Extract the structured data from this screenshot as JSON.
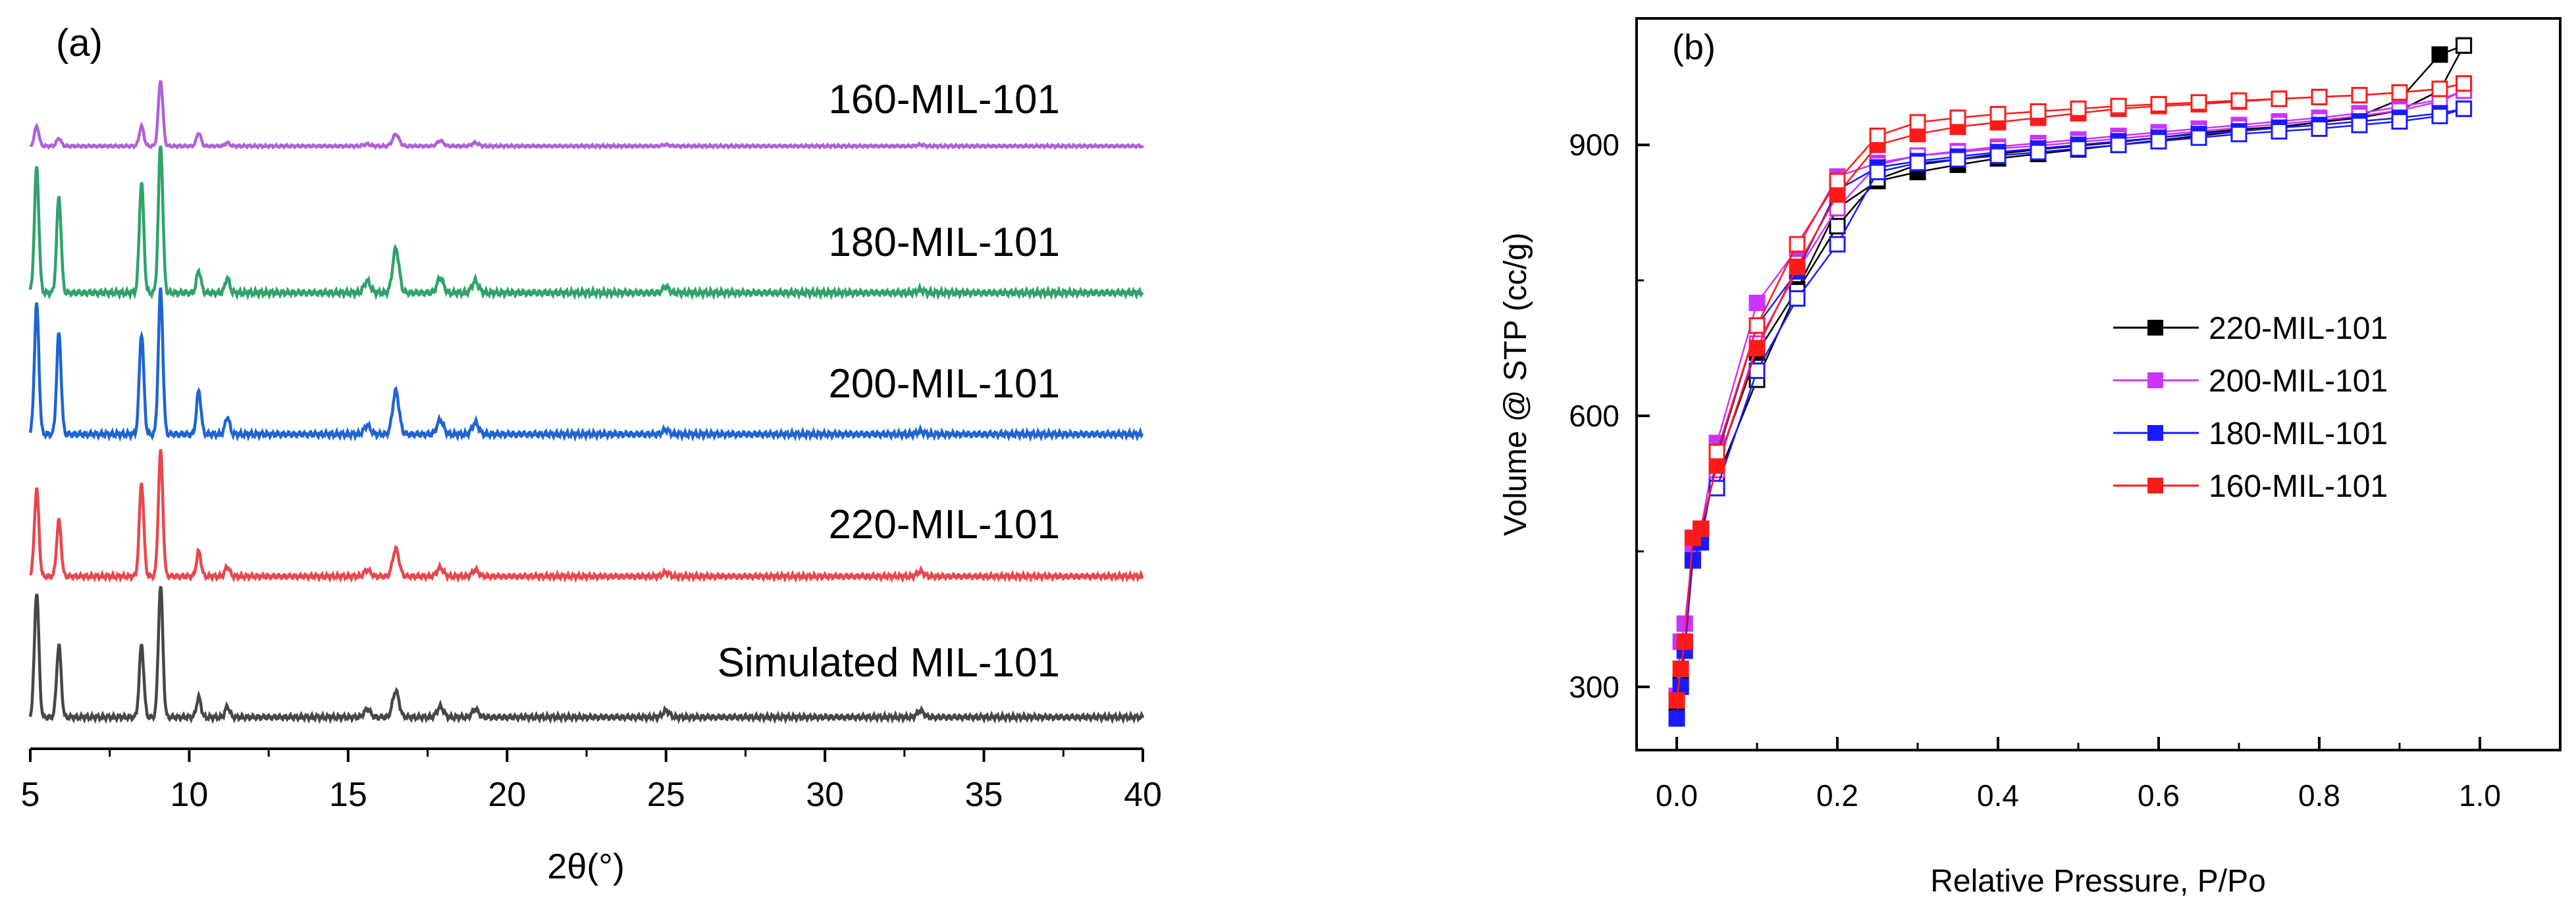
{
  "chart_data": [
    {
      "panel_label": "(a)",
      "type": "line",
      "xlabel": "2θ(°)",
      "ylabel": "",
      "xlim": [
        5,
        40
      ],
      "x_ticks": [
        5,
        10,
        15,
        20,
        25,
        30,
        35,
        40
      ],
      "grid": false,
      "peak_positions_2theta": [
        5.2,
        5.9,
        8.5,
        9.1,
        10.3,
        11.2,
        15.6,
        16.5,
        17.9,
        19.0,
        25.0,
        33.0
      ],
      "series": [
        {
          "name": "Simulated MIL-101",
          "color": "#474747",
          "peak_heights": [
            0.95,
            0.55,
            0.55,
            1.0,
            0.15,
            0.08,
            0.06,
            0.2,
            0.08,
            0.06,
            0.05,
            0.05
          ]
        },
        {
          "name": "220-MIL-101",
          "color": "#e8474c",
          "peak_heights": [
            0.7,
            0.45,
            0.75,
            1.0,
            0.2,
            0.08,
            0.05,
            0.22,
            0.07,
            0.05,
            0.03,
            0.04
          ]
        },
        {
          "name": "200-MIL-101",
          "color": "#1f64d2",
          "peak_heights": [
            0.9,
            0.7,
            0.7,
            1.0,
            0.3,
            0.12,
            0.06,
            0.3,
            0.1,
            0.08,
            0.03,
            0.02
          ]
        },
        {
          "name": "180-MIL-101",
          "color": "#2ea36a",
          "peak_heights": [
            0.85,
            0.65,
            0.75,
            1.0,
            0.15,
            0.1,
            0.08,
            0.3,
            0.1,
            0.08,
            0.04,
            0.02
          ]
        },
        {
          "name": "160-MIL-101",
          "color": "#b061d8",
          "peak_heights": [
            0.3,
            0.12,
            0.3,
            1.0,
            0.2,
            0.05,
            0.03,
            0.18,
            0.08,
            0.05,
            0.02,
            0.02
          ]
        }
      ]
    },
    {
      "panel_label": "(b)",
      "type": "scatter",
      "xlabel": "Relative Pressure, P/Po",
      "ylabel": "Volume @ STP (cc/g)",
      "xlim": [
        -0.05,
        1.1
      ],
      "ylim": [
        230,
        1040
      ],
      "x_ticks": [
        "0.0",
        "0.2",
        "0.4",
        "0.6",
        "0.8",
        "1.0"
      ],
      "y_ticks": [
        "300",
        "600",
        "900"
      ],
      "grid": false,
      "legend_position": "center-right",
      "series": [
        {
          "name": "220-MIL-101",
          "color": "#000000",
          "adsorption": {
            "x": [
              0.0,
              0.005,
              0.01,
              0.02,
              0.03,
              0.05,
              0.1,
              0.15,
              0.2,
              0.25,
              0.3,
              0.35,
              0.4,
              0.45,
              0.5,
              0.55,
              0.6,
              0.65,
              0.7,
              0.75,
              0.8,
              0.85,
              0.9,
              0.95,
              0.98
            ],
            "y": [
              275,
              305,
              350,
              440,
              470,
              545,
              670,
              740,
              830,
              860,
              870,
              878,
              885,
              890,
              895,
              900,
              905,
              910,
              915,
              920,
              925,
              932,
              950,
              1000,
              1010
            ]
          },
          "desorption": {
            "x": [
              0.98,
              0.95,
              0.9,
              0.85,
              0.8,
              0.75,
              0.7,
              0.65,
              0.6,
              0.55,
              0.5,
              0.45,
              0.4,
              0.35,
              0.3,
              0.25,
              0.2,
              0.15,
              0.1,
              0.05
            ],
            "y": [
              1010,
              960,
              938,
              930,
              925,
              920,
              917,
              913,
              908,
              903,
              899,
              895,
              890,
              884,
              878,
              862,
              810,
              738,
              640,
              530
            ]
          }
        },
        {
          "name": "200-MIL-101",
          "color": "#cc33ff",
          "adsorption": {
            "x": [
              0.0,
              0.005,
              0.01,
              0.02,
              0.03,
              0.05,
              0.1,
              0.15,
              0.2,
              0.25,
              0.3,
              0.35,
              0.4,
              0.45,
              0.5,
              0.55,
              0.6,
              0.65,
              0.7,
              0.75,
              0.8,
              0.85,
              0.9,
              0.95,
              0.98
            ],
            "y": [
              290,
              350,
              370,
              450,
              475,
              570,
              725,
              785,
              865,
              880,
              888,
              893,
              898,
              902,
              906,
              910,
              914,
              918,
              922,
              926,
              930,
              935,
              942,
              950,
              960
            ]
          },
          "desorption": {
            "x": [
              0.98,
              0.95,
              0.9,
              0.85,
              0.8,
              0.75,
              0.7,
              0.65,
              0.6,
              0.55,
              0.5,
              0.45,
              0.4,
              0.35,
              0.3,
              0.25,
              0.2,
              0.15,
              0.1,
              0.05
            ],
            "y": [
              960,
              948,
              938,
              932,
              927,
              923,
              919,
              915,
              911,
              907,
              903,
              899,
              896,
              892,
              888,
              878,
              830,
              760,
              680,
              540
            ]
          }
        },
        {
          "name": "180-MIL-101",
          "color": "#1a1aff",
          "adsorption": {
            "x": [
              0.0,
              0.005,
              0.01,
              0.02,
              0.03,
              0.05,
              0.1,
              0.15,
              0.2,
              0.25,
              0.3,
              0.35,
              0.4,
              0.45,
              0.5,
              0.55,
              0.6,
              0.65,
              0.7,
              0.75,
              0.8,
              0.85,
              0.9,
              0.95,
              0.98
            ],
            "y": [
              265,
              300,
              340,
              440,
              460,
              555,
              700,
              760,
              850,
              875,
              882,
              887,
              892,
              896,
              900,
              904,
              908,
              912,
              915,
              919,
              922,
              926,
              930,
              935,
              940
            ]
          },
          "desorption": {
            "x": [
              0.98,
              0.95,
              0.9,
              0.85,
              0.8,
              0.75,
              0.7,
              0.65,
              0.6,
              0.55,
              0.5,
              0.45,
              0.4,
              0.35,
              0.3,
              0.25,
              0.2,
              0.15,
              0.1,
              0.05
            ],
            "y": [
              940,
              932,
              926,
              922,
              918,
              915,
              912,
              908,
              904,
              900,
              896,
              892,
              888,
              884,
              880,
              870,
              790,
              730,
              650,
              520
            ]
          }
        },
        {
          "name": "160-MIL-101",
          "color": "#ff1a1a",
          "adsorption": {
            "x": [
              0.0,
              0.005,
              0.01,
              0.02,
              0.03,
              0.05,
              0.1,
              0.15,
              0.2,
              0.25,
              0.3,
              0.35,
              0.4,
              0.45,
              0.5,
              0.55,
              0.6,
              0.65,
              0.7,
              0.75,
              0.8,
              0.85,
              0.9,
              0.95,
              0.98
            ],
            "y": [
              285,
              320,
              350,
              465,
              475,
              545,
              675,
              765,
              845,
              900,
              912,
              920,
              925,
              930,
              935,
              940,
              943,
              945,
              948,
              951,
              953,
              955,
              958,
              962,
              968
            ]
          },
          "desorption": {
            "x": [
              0.98,
              0.95,
              0.9,
              0.85,
              0.8,
              0.75,
              0.7,
              0.65,
              0.6,
              0.55,
              0.5,
              0.45,
              0.4,
              0.35,
              0.3,
              0.25,
              0.2,
              0.15,
              0.1,
              0.05
            ],
            "y": [
              968,
              962,
              958,
              955,
              953,
              951,
              949,
              947,
              945,
              943,
              940,
              937,
              934,
              930,
              925,
              910,
              860,
              790,
              700,
              560
            ]
          }
        }
      ]
    }
  ]
}
